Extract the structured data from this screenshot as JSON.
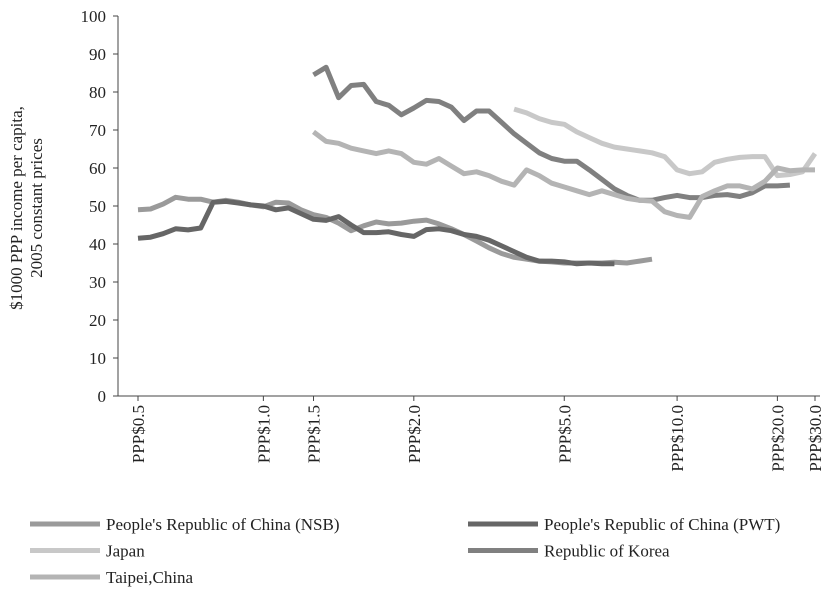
{
  "chart_data": {
    "type": "line",
    "ylabel": [
      "$1000 PPP income per capita,",
      "2005 constant prices"
    ],
    "categories": [
      "PPP$0.5",
      null,
      null,
      null,
      null,
      null,
      null,
      null,
      null,
      null,
      "PPP$1.0",
      null,
      null,
      null,
      "PPP$1.5",
      null,
      null,
      null,
      null,
      null,
      null,
      null,
      "PPP$2.0",
      null,
      null,
      null,
      null,
      null,
      null,
      null,
      null,
      null,
      null,
      null,
      "PPP$5.0",
      null,
      null,
      null,
      null,
      null,
      null,
      null,
      null,
      "PPP$10.0",
      null,
      null,
      null,
      null,
      null,
      null,
      null,
      "PPP$20.0",
      null,
      null,
      "PPP$30.0"
    ],
    "ylim": [
      0,
      100
    ],
    "yticks": [
      0,
      10,
      20,
      30,
      40,
      50,
      60,
      70,
      80,
      90,
      100
    ],
    "series": [
      {
        "name": "People's Republic of China (NSB)",
        "color": "#9a9a9a",
        "values": [
          49,
          49.2,
          50.5,
          52.3,
          51.8,
          51.8,
          51,
          51.5,
          51,
          50.3,
          49.8,
          51,
          50.8,
          49,
          47.7,
          47,
          45.5,
          43.5,
          44.8,
          45.8,
          45.3,
          45.5,
          46,
          46.3,
          45.3,
          44,
          42.5,
          40.8,
          39,
          37.5,
          36.5,
          36,
          35.5,
          35.3,
          35,
          35,
          35,
          35,
          35.2,
          35,
          35.5,
          36,
          null,
          null,
          null,
          null,
          null,
          null,
          null,
          null,
          null,
          null,
          null,
          null,
          null
        ]
      },
      {
        "name": "People's Republic of China (PWT)",
        "color": "#666666",
        "values": [
          41.5,
          41.8,
          42.7,
          44,
          43.7,
          44.2,
          51,
          51.2,
          50.8,
          50.3,
          50,
          49,
          49.5,
          48,
          46.5,
          46.2,
          47.2,
          45,
          43,
          43,
          43.2,
          42.5,
          42,
          43.8,
          44,
          43.5,
          42.5,
          42,
          41,
          39.5,
          38,
          36.5,
          35.5,
          35.5,
          35.3,
          34.8,
          35,
          34.8,
          34.8,
          null,
          null,
          null,
          null,
          null,
          null,
          null,
          null,
          null,
          null,
          null,
          null,
          null,
          null,
          null,
          null
        ]
      },
      {
        "name": "Japan",
        "color": "#c8c8c8",
        "values": [
          null,
          null,
          null,
          null,
          null,
          null,
          null,
          null,
          null,
          null,
          null,
          null,
          null,
          null,
          null,
          null,
          null,
          null,
          null,
          null,
          null,
          null,
          null,
          null,
          null,
          null,
          null,
          null,
          null,
          null,
          75.5,
          74.5,
          73,
          72,
          71.5,
          69.5,
          68,
          66.5,
          65.5,
          65,
          64.5,
          64,
          63,
          59.5,
          58.5,
          59,
          61.5,
          62.3,
          62.8,
          63,
          63,
          58,
          58.3,
          59,
          63.8
        ]
      },
      {
        "name": "Republic of Korea",
        "color": "#808080",
        "values": [
          null,
          null,
          null,
          null,
          null,
          null,
          null,
          null,
          null,
          null,
          null,
          null,
          null,
          null,
          84.5,
          86.5,
          78.5,
          81.7,
          82,
          77.5,
          76.5,
          74,
          75.8,
          77.8,
          77.5,
          76,
          72.5,
          75,
          75,
          72,
          69,
          66.5,
          64,
          62.5,
          61.8,
          61.8,
          59.5,
          57,
          54.5,
          52.8,
          51.5,
          51.5,
          52.2,
          52.8,
          52.2,
          52.2,
          52.8,
          53,
          52.5,
          53.5,
          55.3,
          55.3,
          55.5,
          null,
          null
        ]
      },
      {
        "name": "Taipei,China",
        "color": "#b4b4b4",
        "values": [
          null,
          null,
          null,
          null,
          null,
          null,
          null,
          null,
          null,
          null,
          null,
          null,
          null,
          null,
          69.5,
          67,
          66.5,
          65.2,
          64.5,
          63.8,
          64.5,
          63.8,
          61.5,
          61,
          62.5,
          60.5,
          58.5,
          59,
          58,
          56.5,
          55.5,
          59.5,
          58,
          56,
          55,
          54,
          53,
          54,
          53,
          52,
          51.5,
          51.3,
          48.5,
          47.5,
          47,
          52.5,
          54,
          55.3,
          55.3,
          54.5,
          56.5,
          60,
          59.3,
          59.5,
          59.5
        ]
      }
    ]
  }
}
